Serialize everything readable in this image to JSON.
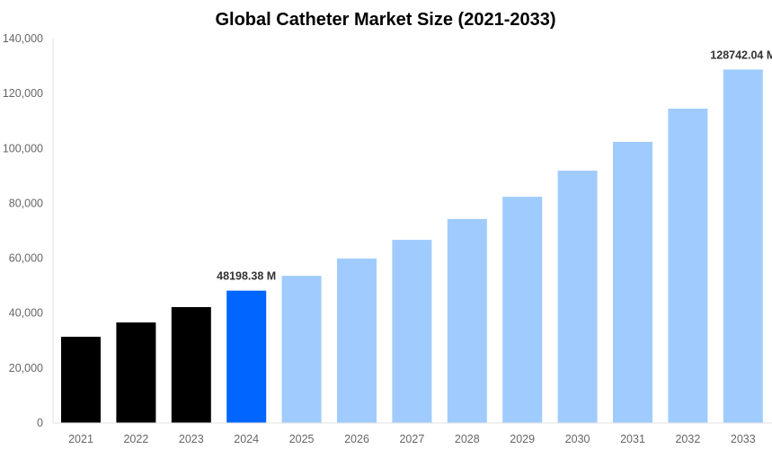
{
  "chart_data": {
    "type": "bar",
    "title": "Global Catheter Market Size (2021-2033)",
    "xlabel": "",
    "ylabel": "",
    "ylim": [
      0,
      140000
    ],
    "yticks": [
      "0",
      "20,000",
      "40,000",
      "60,000",
      "80,000",
      "100,000",
      "120,000",
      "140,000"
    ],
    "ytick_values": [
      0,
      20000,
      40000,
      60000,
      80000,
      100000,
      120000,
      140000
    ],
    "grid": false,
    "categories": [
      "2021",
      "2022",
      "2023",
      "2024",
      "2025",
      "2026",
      "2027",
      "2028",
      "2029",
      "2030",
      "2031",
      "2032",
      "2033"
    ],
    "values": [
      31400,
      36600,
      42200,
      48198.38,
      53600,
      59900,
      66700,
      74300,
      82400,
      91900,
      102400,
      114500,
      128742.04
    ],
    "colors": [
      "#000000",
      "#000000",
      "#000000",
      "#0066ff",
      "#a0cbff",
      "#a0cbff",
      "#a0cbff",
      "#a0cbff",
      "#a0cbff",
      "#a0cbff",
      "#a0cbff",
      "#a0cbff",
      "#a0cbff"
    ],
    "data_labels": [
      {
        "category": "2024",
        "text": "48198.38 M"
      },
      {
        "category": "2033",
        "text": "128742.04 M"
      }
    ]
  }
}
